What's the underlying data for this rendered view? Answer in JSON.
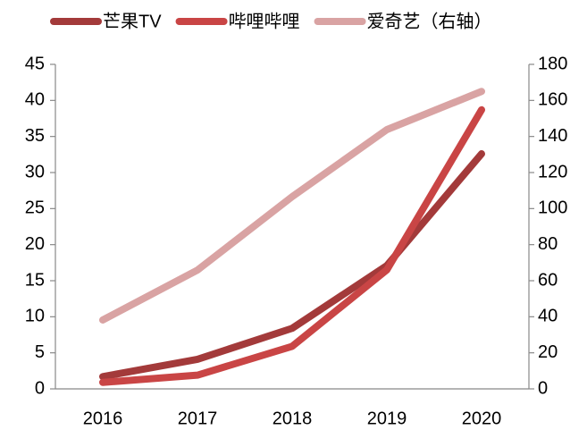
{
  "chart_data": {
    "type": "line",
    "categories": [
      "2016",
      "2017",
      "2018",
      "2019",
      "2020"
    ],
    "series": [
      {
        "name": "芒果TV",
        "color": "#a33a3a",
        "values": [
          1.7,
          4.1,
          8.4,
          17.1,
          32.6
        ]
      },
      {
        "name": "哔哩哔哩",
        "color": "#c94545",
        "values": [
          0.9,
          1.9,
          5.9,
          16.5,
          38.7
        ]
      },
      {
        "name": "爱奇艺（右轴）",
        "color": "#d9a3a3",
        "axis": "y2",
        "values": [
          38.2,
          65.9,
          106.6,
          143.8,
          165
        ]
      }
    ],
    "ylim": [
      0,
      45
    ],
    "yticks": [
      0,
      5,
      10,
      15,
      20,
      25,
      30,
      35,
      40,
      45
    ],
    "y2lim": [
      0,
      180
    ],
    "y2ticks": [
      0,
      20,
      40,
      60,
      80,
      100,
      120,
      140,
      160,
      180
    ],
    "legend": "top"
  }
}
